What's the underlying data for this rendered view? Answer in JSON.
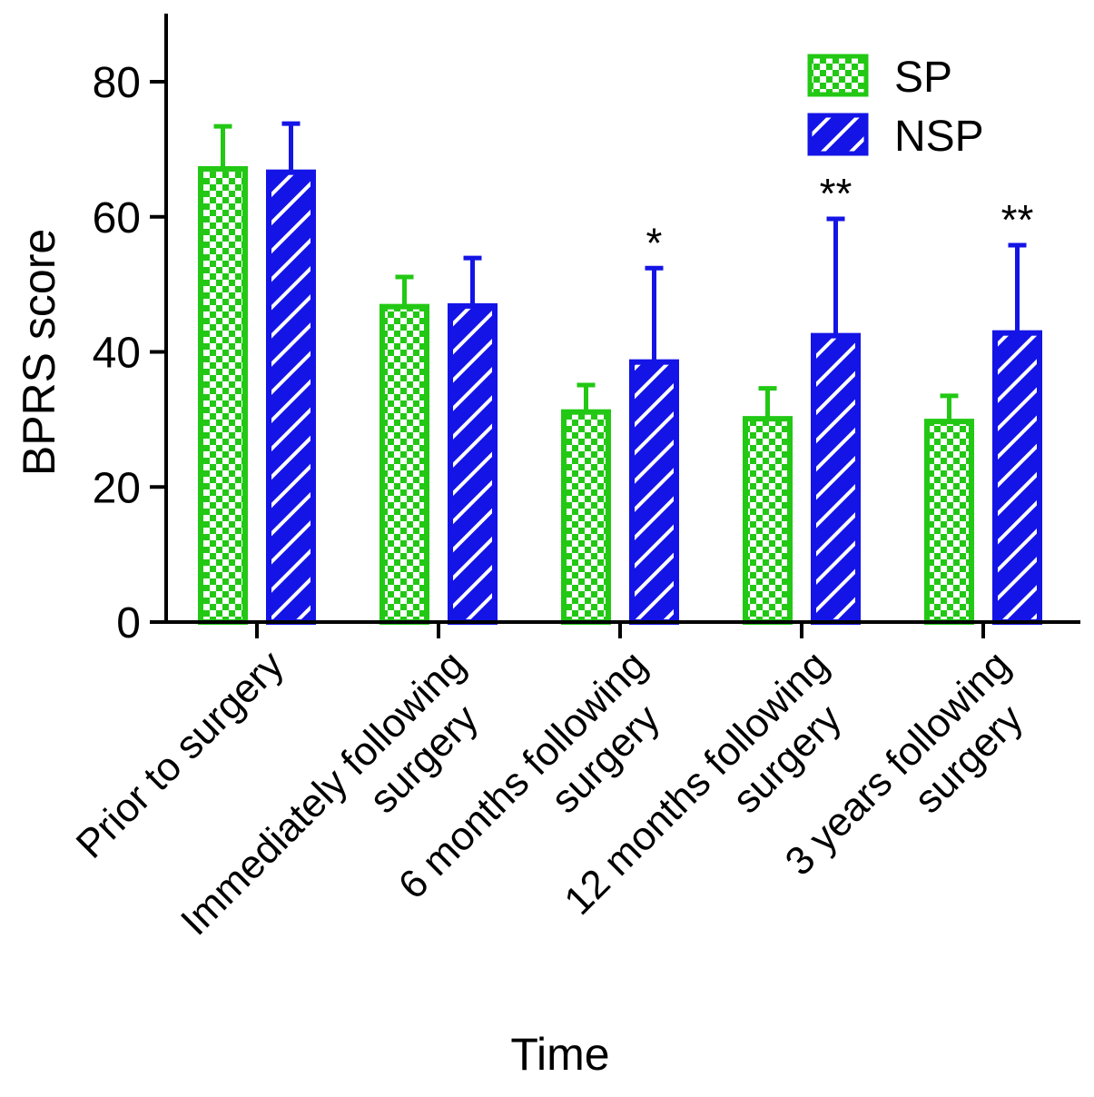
{
  "chart_data": {
    "type": "bar",
    "title": "",
    "xlabel": "Time",
    "ylabel": "BPRS score",
    "ylim": [
      0,
      90
    ],
    "yticks": [
      0,
      20,
      40,
      60,
      80
    ],
    "ytick_labels": [
      "0",
      "20",
      "40",
      "60",
      "80"
    ],
    "categories": [
      [
        "Prior to surgery"
      ],
      [
        "Immediately following",
        "surgery"
      ],
      [
        "6 months following",
        "surgery"
      ],
      [
        "12 months following",
        "surgery"
      ],
      [
        "3 years following",
        "surgery"
      ]
    ],
    "series": [
      {
        "name": "SP",
        "color": "#22c814",
        "pattern": "checkerboard",
        "values": [
          67.1,
          46.7,
          31.1,
          30.1,
          29.7
        ],
        "error": [
          6.3,
          4.4,
          4.0,
          4.5,
          3.8
        ]
      },
      {
        "name": "NSP",
        "color": "#1414e6",
        "pattern": "diagonal-stripes",
        "values": [
          66.6,
          46.8,
          38.5,
          42.4,
          42.8
        ],
        "error": [
          7.2,
          7.1,
          13.9,
          17.3,
          13.0
        ]
      }
    ],
    "annotations": [
      "",
      "",
      "*",
      "**",
      "**"
    ],
    "legend_position": "top-right",
    "grid": false
  }
}
